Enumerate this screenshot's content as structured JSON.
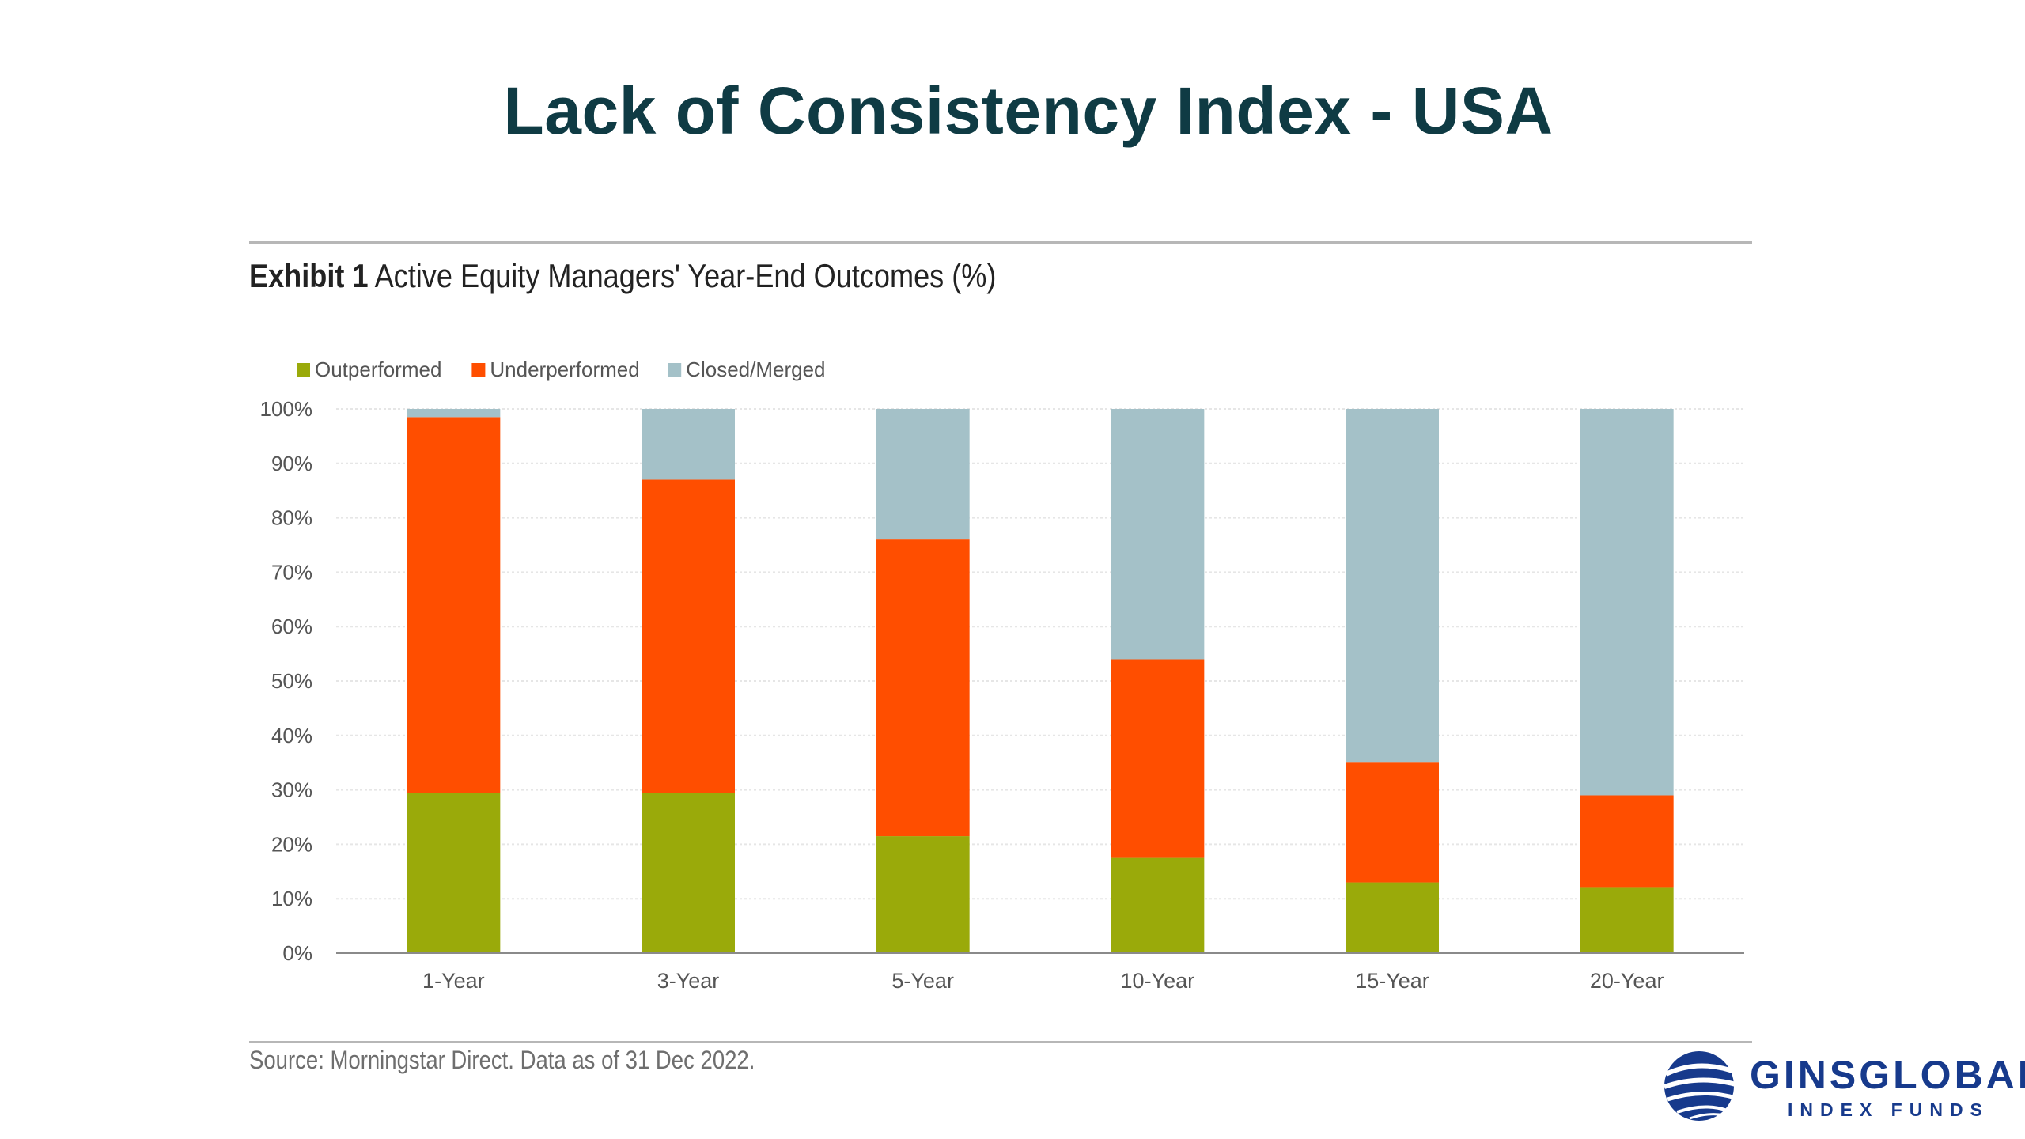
{
  "slide": {
    "title": "Lack of Consistency Index - USA"
  },
  "exhibit": {
    "label": "Exhibit 1",
    "title": "Active Equity Managers' Year-End Outcomes (%)"
  },
  "source": "Source: Morningstar Direct. Data as of 31 Dec 2022.",
  "logo": {
    "name": "GINSGLOBAL",
    "tagline": "INDEX FUNDS",
    "color": "#173a8c"
  },
  "chart_data": {
    "type": "bar",
    "stacked": true,
    "categories": [
      "1-Year",
      "3-Year",
      "5-Year",
      "10-Year",
      "15-Year",
      "20-Year"
    ],
    "series": [
      {
        "name": "Outperformed",
        "color": "#9aaa0a",
        "values": [
          29.5,
          29.5,
          21.5,
          17.5,
          13,
          12
        ]
      },
      {
        "name": "Underperformed",
        "color": "#ff4e00",
        "values": [
          69,
          57.5,
          54.5,
          36.5,
          22,
          17
        ]
      },
      {
        "name": "Closed/Merged",
        "color": "#a4c1c8",
        "values": [
          1.5,
          13,
          24,
          46,
          65,
          71
        ]
      }
    ],
    "ylim": [
      0,
      100
    ],
    "yticks": [
      "0%",
      "10%",
      "20%",
      "30%",
      "40%",
      "50%",
      "60%",
      "70%",
      "80%",
      "90%",
      "100%"
    ],
    "grid": true,
    "legend_position": "top-left",
    "xlabel": "",
    "ylabel": ""
  }
}
